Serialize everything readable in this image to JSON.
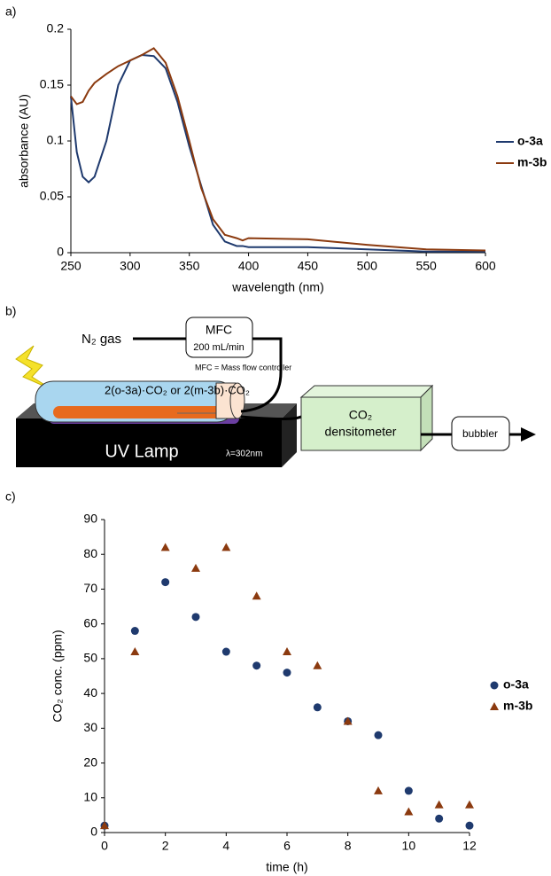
{
  "panel_labels": [
    "a)",
    "b)",
    "c)"
  ],
  "chart_data": [
    {
      "type": "line",
      "xlabel": "wavelength (nm)",
      "ylabel": "absorbance (AU)",
      "x": [
        250,
        255,
        260,
        265,
        270,
        280,
        290,
        300,
        310,
        320,
        330,
        340,
        350,
        360,
        370,
        380,
        390,
        395,
        400,
        450,
        500,
        550,
        600
      ],
      "series": [
        {
          "name": "o-3a",
          "color": "#1f3a6e",
          "values": [
            0.14,
            0.09,
            0.068,
            0.063,
            0.068,
            0.1,
            0.15,
            0.172,
            0.177,
            0.176,
            0.165,
            0.135,
            0.095,
            0.06,
            0.025,
            0.01,
            0.006,
            0.006,
            0.005,
            0.005,
            0.003,
            0.001,
            0.001
          ]
        },
        {
          "name": "m-3b",
          "color": "#8b3a0f",
          "values": [
            0.14,
            0.133,
            0.135,
            0.145,
            0.152,
            0.16,
            0.167,
            0.172,
            0.177,
            0.183,
            0.17,
            0.14,
            0.1,
            0.058,
            0.03,
            0.016,
            0.013,
            0.011,
            0.013,
            0.012,
            0.007,
            0.003,
            0.002
          ]
        }
      ],
      "xlim": [
        250,
        600
      ],
      "xticks": [
        250,
        300,
        350,
        400,
        450,
        500,
        550,
        600
      ],
      "ylim": [
        0,
        0.2
      ],
      "yticks": [
        0,
        0.05,
        0.1,
        0.15,
        0.2
      ]
    },
    {
      "type": "scatter",
      "xlabel": "time (h)",
      "ylabel": "CO₂ conc. (ppm)",
      "x": [
        0,
        1,
        2,
        3,
        4,
        5,
        6,
        7,
        8,
        9,
        10,
        11,
        12
      ],
      "series": [
        {
          "name": "o-3a",
          "color": "#1f3a6e",
          "marker": "circle",
          "values": [
            2,
            58,
            72,
            62,
            52,
            48,
            46,
            36,
            32,
            28,
            12,
            4,
            2
          ]
        },
        {
          "name": "m-3b",
          "color": "#8b3a0f",
          "marker": "triangle",
          "values": [
            2,
            52,
            82,
            76,
            82,
            68,
            52,
            48,
            32,
            12,
            6,
            8,
            8
          ]
        }
      ],
      "xlim": [
        0,
        12
      ],
      "xticks": [
        0,
        2,
        4,
        6,
        8,
        10,
        12
      ],
      "ylim": [
        0,
        90
      ],
      "yticks": [
        0,
        10,
        20,
        30,
        40,
        50,
        60,
        70,
        80,
        90
      ]
    }
  ],
  "diagram": {
    "gas_label": "N₂ gas",
    "mfc_title": "MFC",
    "mfc_flow": "200 mL/min",
    "mfc_note": "MFC = Mass flow controller",
    "sample_label": "2(o-3a)·CO₂ or 2(m-3b)·CO₂",
    "lamp": "UV Lamp",
    "wavelength": "λ=302nm",
    "densitometer": [
      "CO₂",
      "densitometer"
    ],
    "bubbler": "bubbler"
  }
}
